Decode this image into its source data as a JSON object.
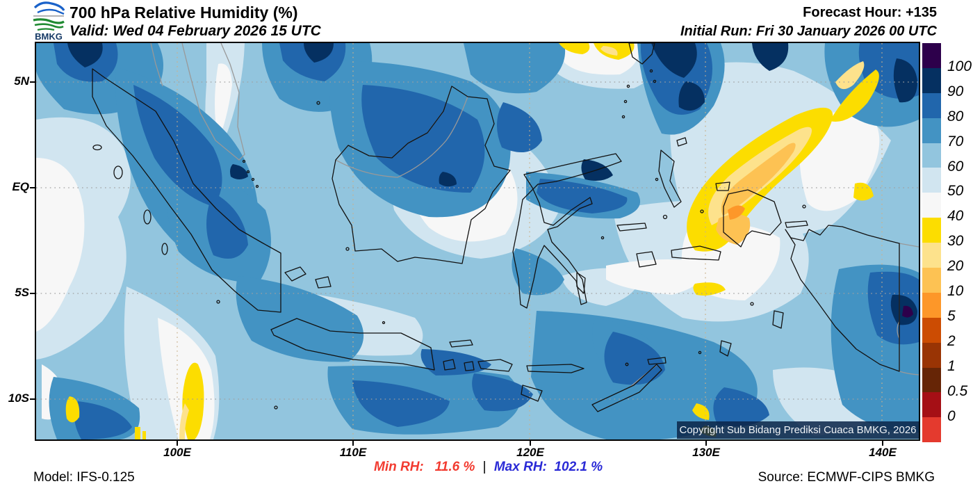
{
  "header": {
    "logo_text": "BMKG",
    "title": "700 hPa Relative Humidity (%)",
    "valid": "Valid: Wed 04 February 2026 15 UTC",
    "forecast_hour": "Forecast Hour: +135",
    "initial_run": "Initial Run: Fri 30 January 2026 00 UTC"
  },
  "map": {
    "copyright": "Copyright Sub Bidang Prediksi Cuaca BMKG, 2026",
    "x_tick_labels": [
      "100E",
      "110E",
      "120E",
      "130E",
      "140E"
    ],
    "y_tick_labels": [
      "5N",
      "EQ",
      "5S",
      "10S"
    ]
  },
  "colorbar": {
    "labels": [
      "100",
      "90",
      "80",
      "70",
      "60",
      "50",
      "40",
      "30",
      "20",
      "10",
      "5",
      "2",
      "1",
      "0.5",
      "0"
    ],
    "colors": [
      "#2d004b",
      "#053061",
      "#2166ac",
      "#4393c3",
      "#92c5de",
      "#d1e5f0",
      "#f7f7f7",
      "#fcdd00",
      "#fde28c",
      "#fdc253",
      "#fd9729",
      "#cc4c02",
      "#993404",
      "#662506",
      "#a50f15",
      "#e43a2e"
    ]
  },
  "footer": {
    "model": "Model: IFS-0.125",
    "min_label": "Min RH:",
    "min_value": "11.6 %",
    "separator": "|",
    "max_label": "Max RH:",
    "max_value": "102.1 %",
    "source": "Source: ECMWF-CIPS BMKG",
    "min_color": "#f23b30",
    "max_color": "#2a2ad6"
  },
  "chart_data": {
    "type": "heatmap",
    "title": "700 hPa Relative Humidity (%)",
    "units": "%",
    "levels": [
      0,
      0.5,
      1,
      2,
      5,
      10,
      20,
      30,
      40,
      50,
      60,
      70,
      80,
      90,
      100
    ],
    "region": {
      "lon_min": "92E",
      "lon_max": "142E",
      "lat_min": "12S",
      "lat_max": "7N"
    },
    "min_rh": 11.6,
    "max_rh": 102.1
  }
}
